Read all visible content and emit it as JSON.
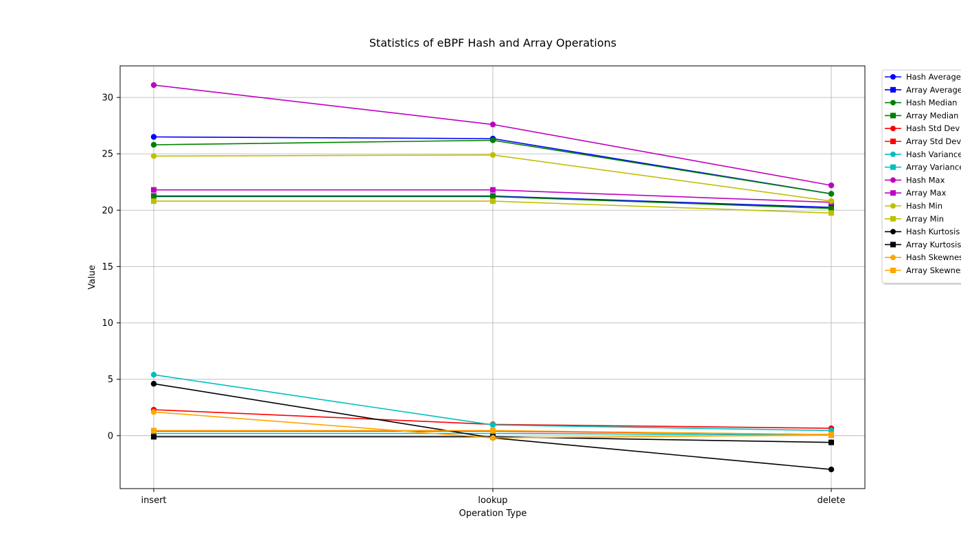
{
  "chart_data": {
    "type": "line",
    "title": "Statistics of eBPF Hash and Array Operations",
    "xlabel": "Operation Type",
    "ylabel": "Value",
    "categories": [
      "insert",
      "lookup",
      "delete"
    ],
    "yticks": [
      0,
      5,
      10,
      15,
      20,
      25,
      30
    ],
    "ylim": [
      -4.7,
      32.8
    ],
    "grid": true,
    "legend_position": "right-outside-top",
    "series": [
      {
        "name": "Hash Average",
        "color": "#0000ff",
        "marker": "circle",
        "values": [
          26.5,
          26.35,
          21.45
        ]
      },
      {
        "name": "Array Average",
        "color": "#0000ff",
        "marker": "square",
        "values": [
          21.25,
          21.25,
          20.25
        ]
      },
      {
        "name": "Hash Median",
        "color": "#008000",
        "marker": "circle",
        "values": [
          25.8,
          26.2,
          21.45
        ]
      },
      {
        "name": "Array Median",
        "color": "#008000",
        "marker": "square",
        "values": [
          21.2,
          21.2,
          20.15
        ]
      },
      {
        "name": "Hash Std Dev",
        "color": "#ff0000",
        "marker": "circle",
        "values": [
          2.3,
          1.0,
          0.65
        ]
      },
      {
        "name": "Array Std Dev",
        "color": "#ff0000",
        "marker": "square",
        "values": [
          0.4,
          0.4,
          0.1
        ]
      },
      {
        "name": "Hash Variance",
        "color": "#00bfbf",
        "marker": "circle",
        "values": [
          5.4,
          0.95,
          0.45
        ]
      },
      {
        "name": "Array Variance",
        "color": "#00bfbf",
        "marker": "square",
        "values": [
          0.2,
          0.2,
          0.05
        ]
      },
      {
        "name": "Hash Max",
        "color": "#bf00bf",
        "marker": "circle",
        "values": [
          31.1,
          27.6,
          22.2
        ]
      },
      {
        "name": "Array Max",
        "color": "#bf00bf",
        "marker": "square",
        "values": [
          21.8,
          21.8,
          20.7
        ]
      },
      {
        "name": "Hash Min",
        "color": "#bfbf00",
        "marker": "circle",
        "values": [
          24.8,
          24.9,
          20.8
        ]
      },
      {
        "name": "Array Min",
        "color": "#bfbf00",
        "marker": "square",
        "values": [
          20.8,
          20.8,
          19.75
        ]
      },
      {
        "name": "Hash Kurtosis",
        "color": "#000000",
        "marker": "circle",
        "values": [
          4.6,
          -0.2,
          -3.0
        ]
      },
      {
        "name": "Array Kurtosis",
        "color": "#000000",
        "marker": "square",
        "values": [
          -0.1,
          -0.1,
          -0.6
        ]
      },
      {
        "name": "Hash Skewness",
        "color": "#ffa500",
        "marker": "circle",
        "values": [
          2.1,
          -0.2,
          0.05
        ]
      },
      {
        "name": "Array Skewness",
        "color": "#ffa500",
        "marker": "square",
        "values": [
          0.45,
          0.45,
          0.1
        ]
      }
    ]
  }
}
